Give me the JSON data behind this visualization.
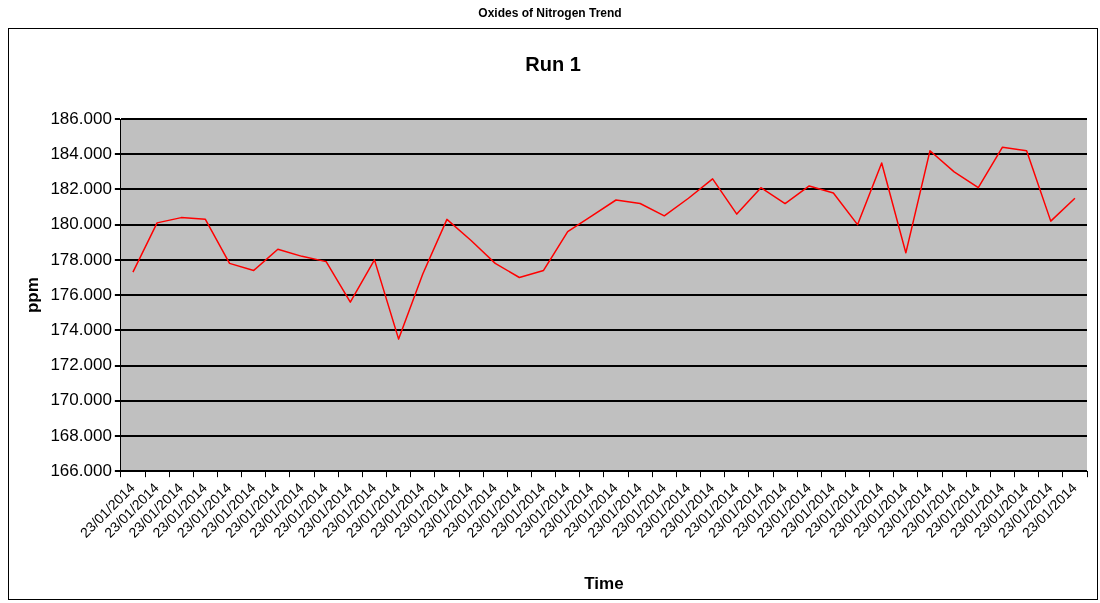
{
  "chart_data": {
    "type": "line",
    "title": "Oxides of Nitrogen Trend",
    "subtitle": "Run 1",
    "xlabel": "Time",
    "ylabel": "ppm",
    "categories": [
      "23/01/2014",
      "23/01/2014",
      "23/01/2014",
      "23/01/2014",
      "23/01/2014",
      "23/01/2014",
      "23/01/2014",
      "23/01/2014",
      "23/01/2014",
      "23/01/2014",
      "23/01/2014",
      "23/01/2014",
      "23/01/2014",
      "23/01/2014",
      "23/01/2014",
      "23/01/2014",
      "23/01/2014",
      "23/01/2014",
      "23/01/2014",
      "23/01/2014",
      "23/01/2014",
      "23/01/2014",
      "23/01/2014",
      "23/01/2014",
      "23/01/2014",
      "23/01/2014",
      "23/01/2014",
      "23/01/2014",
      "23/01/2014",
      "23/01/2014",
      "23/01/2014",
      "23/01/2014",
      "23/01/2014",
      "23/01/2014",
      "23/01/2014",
      "23/01/2014",
      "23/01/2014",
      "23/01/2014",
      "23/01/2014",
      "23/01/2014"
    ],
    "series": [
      {
        "color": "#ff0000",
        "values": [
          177.3,
          180.1,
          180.4,
          180.3,
          177.8,
          177.4,
          178.6,
          178.2,
          177.9,
          175.6,
          178.0,
          173.5,
          177.2,
          180.3,
          179.1,
          177.8,
          177.0,
          177.4,
          179.6,
          180.5,
          181.4,
          181.2,
          180.5,
          181.5,
          182.6,
          180.6,
          182.1,
          181.2,
          182.2,
          181.8,
          180.0,
          183.5,
          178.4,
          184.2,
          183.0,
          182.1,
          184.4,
          184.2,
          180.2,
          181.5
        ]
      }
    ],
    "ylim": [
      166,
      186
    ],
    "yticks": [
      {
        "value": 166,
        "label": "166.000"
      },
      {
        "value": 168,
        "label": "168.000"
      },
      {
        "value": 170,
        "label": "170.000"
      },
      {
        "value": 172,
        "label": "172.000"
      },
      {
        "value": 174,
        "label": "174.000"
      },
      {
        "value": 176,
        "label": "176.000"
      },
      {
        "value": 178,
        "label": "178.000"
      },
      {
        "value": 180,
        "label": "180.000"
      },
      {
        "value": 182,
        "label": "182.000"
      },
      {
        "value": 184,
        "label": "184.000"
      },
      {
        "value": 186,
        "label": "186.000"
      }
    ],
    "grid": "y",
    "marker": "none",
    "line_style": "solid"
  }
}
